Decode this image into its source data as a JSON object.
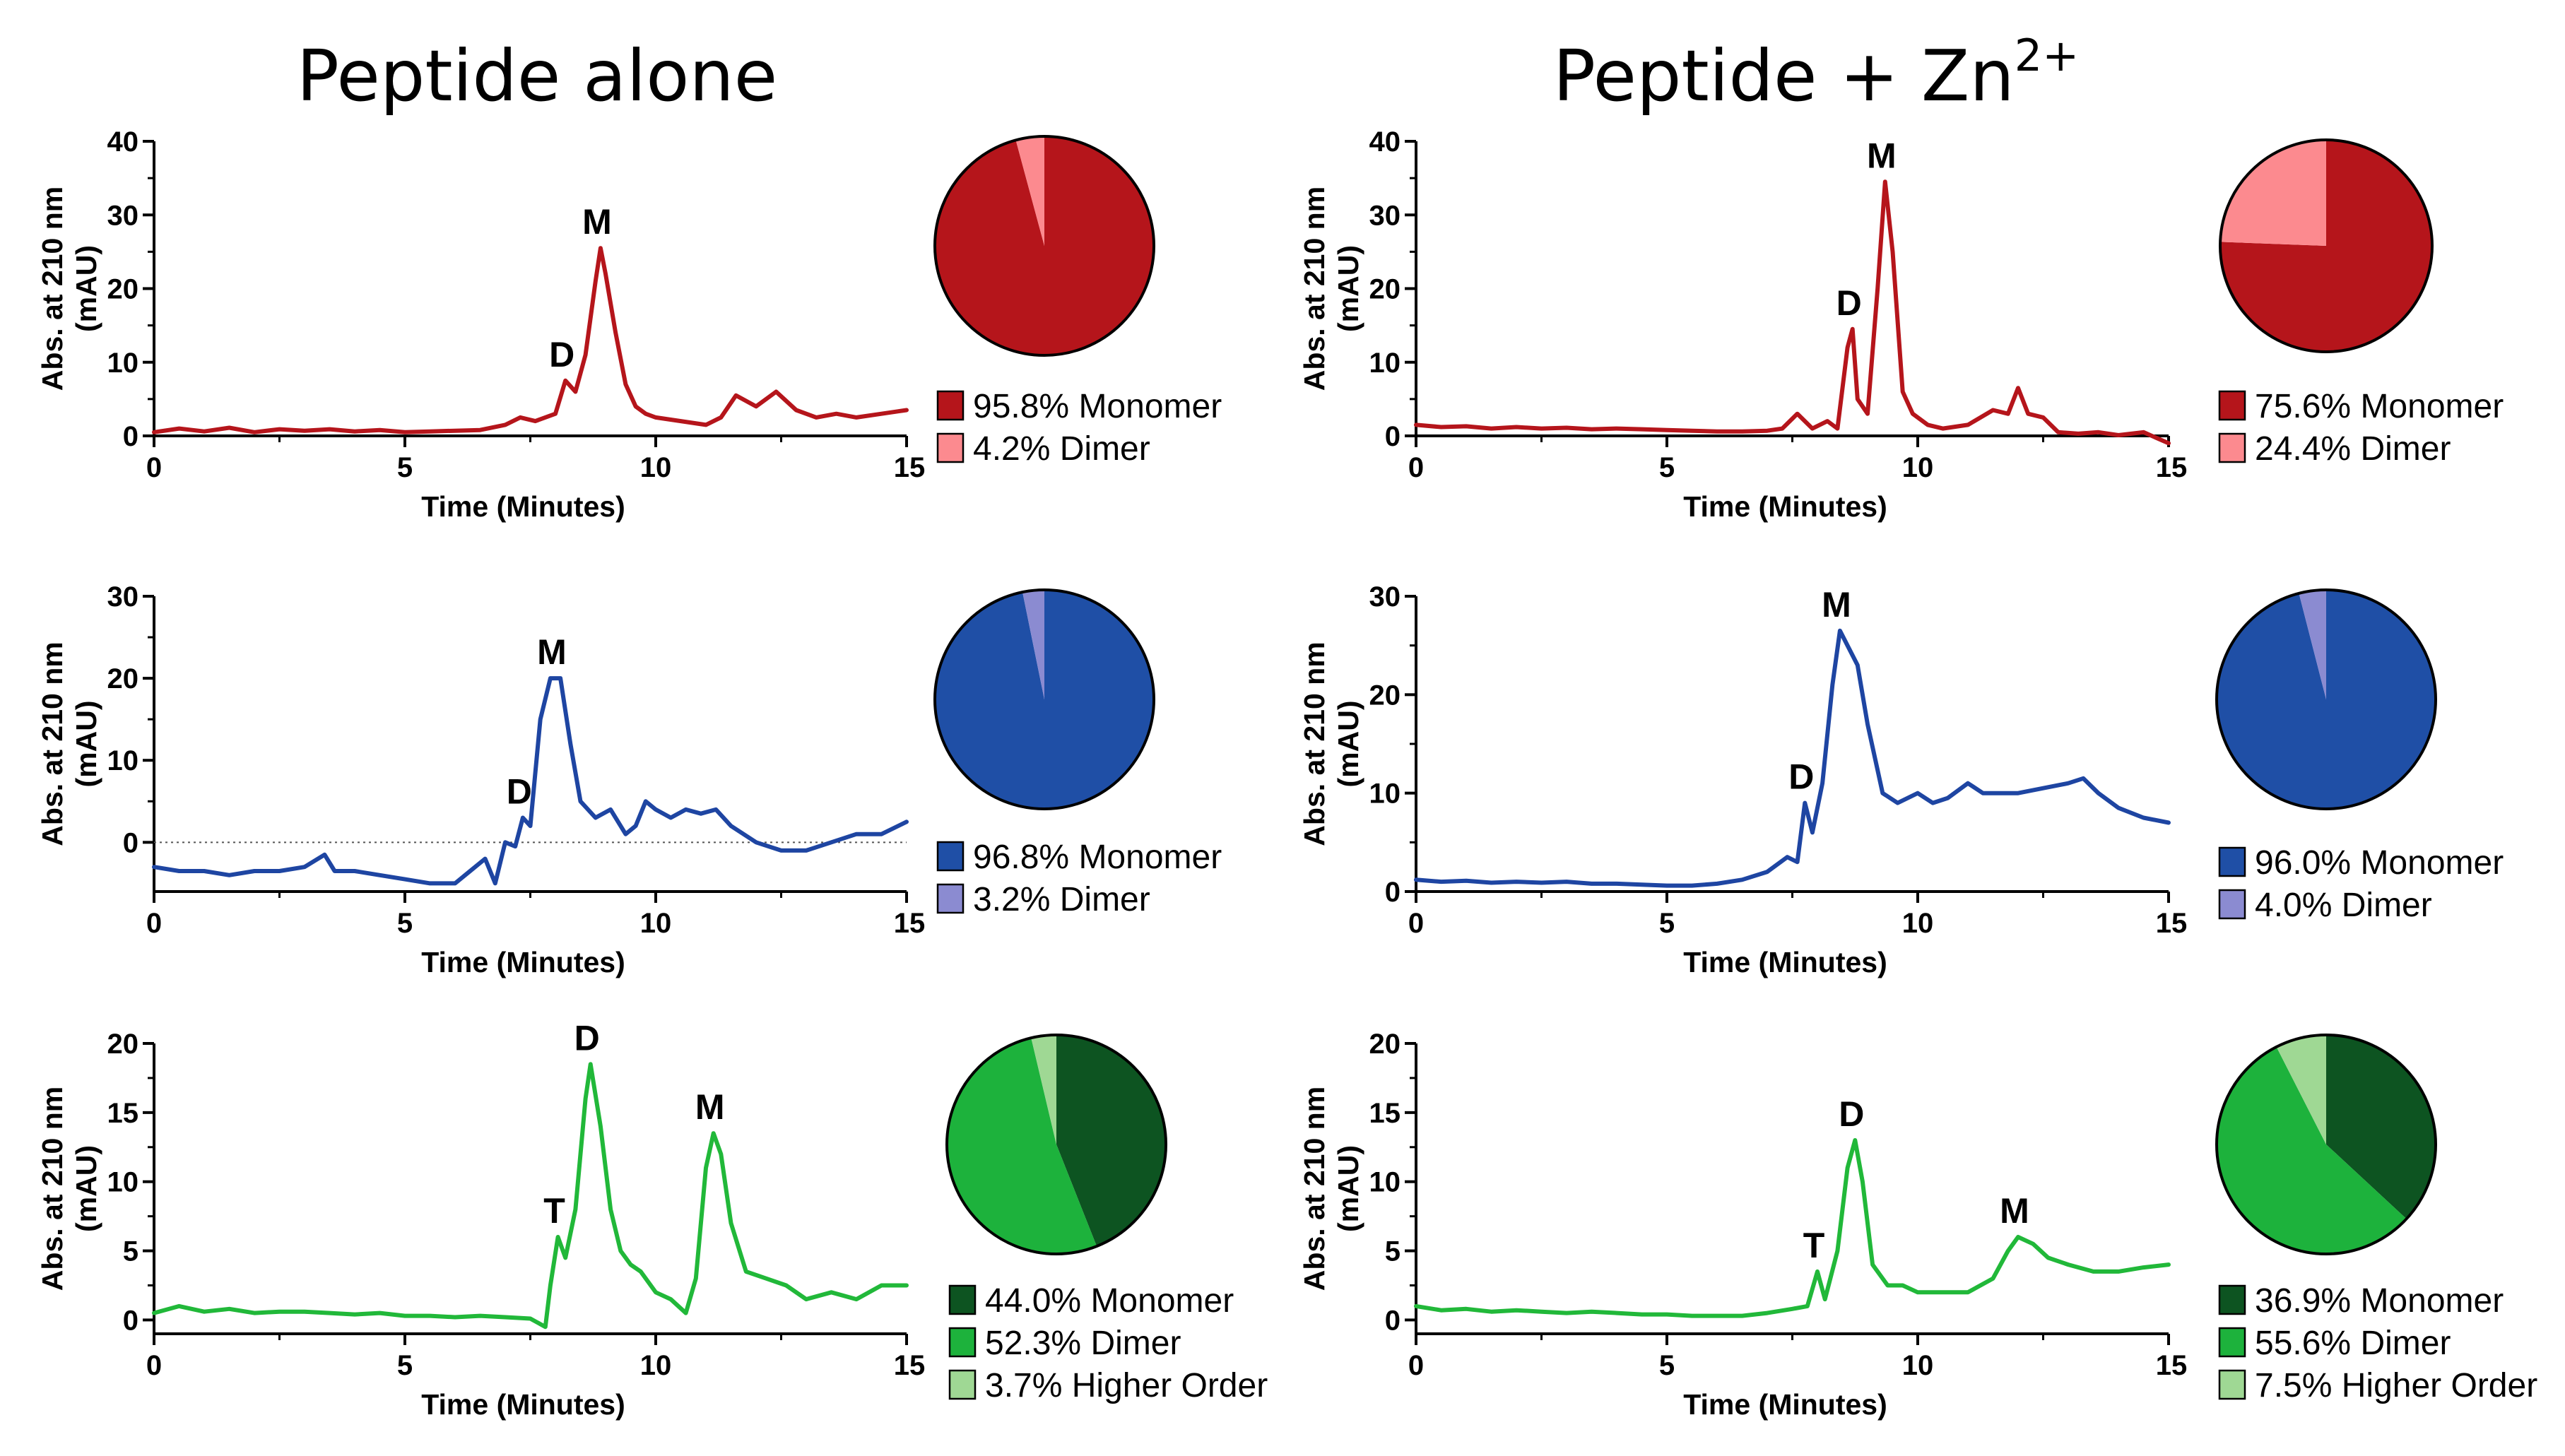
{
  "columns": {
    "left_title": "Peptide alone",
    "right_title_base": "Peptide + Zn",
    "right_title_sup": "2+"
  },
  "chart_data": [
    {
      "id": "alone-red",
      "type": "line",
      "color": "#b5151b",
      "x": [
        0,
        0.5,
        1,
        1.5,
        2,
        2.5,
        3,
        3.5,
        4,
        4.5,
        5,
        5.5,
        6,
        6.5,
        7,
        7.3,
        7.6,
        8,
        8.2,
        8.4,
        8.6,
        8.8,
        8.9,
        9.0,
        9.2,
        9.4,
        9.6,
        9.8,
        10,
        10.5,
        11,
        11.3,
        11.6,
        12,
        12.4,
        12.8,
        13.2,
        13.6,
        14,
        14.5,
        15
      ],
      "y": [
        0.5,
        1,
        0.6,
        1.1,
        0.5,
        0.9,
        0.7,
        0.9,
        0.6,
        0.8,
        0.5,
        0.6,
        0.7,
        0.8,
        1.5,
        2.5,
        2,
        3,
        7.5,
        6,
        11,
        21,
        25.5,
        22,
        14,
        7,
        4,
        3,
        2.5,
        2,
        1.5,
        2.5,
        5.5,
        4,
        6,
        3.5,
        2.5,
        3,
        2.5,
        3,
        3.5
      ],
      "xlabel": "Time (Minutes)",
      "ylabel": "Abs. at 210 nm (mAU)",
      "xticks": [
        "0",
        "5",
        "10",
        "15"
      ],
      "yticks": [
        "0",
        "10",
        "20",
        "30",
        "40"
      ],
      "xlim": [
        0,
        15
      ],
      "ylim": [
        0,
        40
      ],
      "zero_line": false,
      "peaks": [
        {
          "label": "M",
          "x": 8.9,
          "y": 25.5
        },
        {
          "label": "D",
          "x": 8.2,
          "y": 7.5
        }
      ],
      "pie": [
        {
          "name": "Monomer",
          "percent": 95.8,
          "color": "#b5151b",
          "label": "95.8% Monomer"
        },
        {
          "name": "Dimer",
          "percent": 4.2,
          "color": "#fc8a8f",
          "label": "4.2% Dimer"
        }
      ]
    },
    {
      "id": "zn-red",
      "type": "line",
      "color": "#b5151b",
      "x": [
        0,
        0.5,
        1,
        1.5,
        2,
        2.5,
        3,
        3.5,
        4,
        4.5,
        5,
        5.5,
        6,
        6.5,
        7,
        7.3,
        7.6,
        7.9,
        8.2,
        8.4,
        8.6,
        8.7,
        8.8,
        9.0,
        9.2,
        9.35,
        9.5,
        9.7,
        9.9,
        10.2,
        10.5,
        11,
        11.5,
        11.8,
        12.0,
        12.2,
        12.5,
        12.8,
        13.2,
        13.6,
        14,
        14.5,
        15
      ],
      "y": [
        1.5,
        1.2,
        1.3,
        1,
        1.2,
        1,
        1.1,
        0.9,
        1,
        0.9,
        0.8,
        0.7,
        0.6,
        0.6,
        0.7,
        1,
        3,
        1,
        2,
        1,
        12,
        14.5,
        5,
        3,
        20,
        34.5,
        25,
        6,
        3,
        1.5,
        1,
        1.5,
        3.5,
        3,
        6.5,
        3,
        2.5,
        0.5,
        0.3,
        0.5,
        0.1,
        0.5,
        -1
      ],
      "xlabel": "Time (Minutes)",
      "ylabel": "Abs. at 210 nm (mAU)",
      "xticks": [
        "0",
        "5",
        "10",
        "15"
      ],
      "yticks": [
        "0",
        "10",
        "20",
        "30",
        "40"
      ],
      "xlim": [
        0,
        15
      ],
      "ylim": [
        0,
        40
      ],
      "zero_line": false,
      "peaks": [
        {
          "label": "M",
          "x": 9.35,
          "y": 34.5
        },
        {
          "label": "D",
          "x": 8.7,
          "y": 14.5
        }
      ],
      "pie": [
        {
          "name": "Monomer",
          "percent": 75.6,
          "color": "#b5151b",
          "label": "75.6% Monomer"
        },
        {
          "name": "Dimer",
          "percent": 24.4,
          "color": "#fc8a8f",
          "label": "24.4% Dimer"
        }
      ]
    },
    {
      "id": "alone-blue",
      "type": "line",
      "color": "#1e45a2",
      "x": [
        0,
        0.5,
        1,
        1.5,
        2,
        2.5,
        3,
        3.4,
        3.6,
        4,
        4.5,
        5,
        5.5,
        6,
        6.3,
        6.6,
        6.8,
        7.0,
        7.2,
        7.35,
        7.5,
        7.7,
        7.9,
        8.1,
        8.3,
        8.5,
        8.8,
        9.1,
        9.4,
        9.6,
        9.8,
        10.0,
        10.3,
        10.6,
        10.9,
        11.2,
        11.5,
        12,
        12.5,
        13,
        13.5,
        14,
        14.5,
        15
      ],
      "y": [
        -3,
        -3.5,
        -3.5,
        -4,
        -3.5,
        -3.5,
        -3,
        -1.5,
        -3.5,
        -3.5,
        -4,
        -4.5,
        -5,
        -5,
        -3.5,
        -2,
        -5,
        0,
        -0.5,
        3,
        2,
        15,
        20,
        20,
        12,
        5,
        3,
        4,
        1,
        2,
        5,
        4,
        3,
        4,
        3.5,
        4,
        2,
        0,
        -1,
        -1,
        0,
        1,
        1,
        2.5
      ],
      "xlabel": "Time (Minutes)",
      "ylabel": "Abs. at 210 nm (mAU)",
      "xticks": [
        "0",
        "5",
        "10",
        "15"
      ],
      "yticks": [
        "0",
        "10",
        "20",
        "30"
      ],
      "xlim": [
        0,
        15
      ],
      "ylim": [
        -6,
        30
      ],
      "zero_line": true,
      "peaks": [
        {
          "label": "M",
          "x": 8.0,
          "y": 20
        },
        {
          "label": "D",
          "x": 7.35,
          "y": 3
        }
      ],
      "pie": [
        {
          "name": "Monomer",
          "percent": 96.8,
          "color": "#1f4fa6",
          "label": "96.8% Monomer"
        },
        {
          "name": "Dimer",
          "percent": 3.2,
          "color": "#8b8bd1",
          "label": "3.2% Dimer"
        }
      ]
    },
    {
      "id": "zn-blue",
      "type": "line",
      "color": "#1e45a2",
      "x": [
        0,
        0.5,
        1,
        1.5,
        2,
        2.5,
        3,
        3.5,
        4,
        4.5,
        5,
        5.5,
        6,
        6.5,
        7,
        7.4,
        7.6,
        7.75,
        7.9,
        8.1,
        8.3,
        8.45,
        8.6,
        8.8,
        9.0,
        9.3,
        9.6,
        10,
        10.3,
        10.6,
        11,
        11.3,
        11.6,
        12,
        12.5,
        13,
        13.3,
        13.6,
        14,
        14.5,
        15
      ],
      "y": [
        1.2,
        1,
        1.1,
        0.9,
        1,
        0.9,
        1,
        0.8,
        0.8,
        0.7,
        0.6,
        0.6,
        0.8,
        1.2,
        2,
        3.5,
        3,
        9,
        6,
        11,
        21,
        26.5,
        25,
        23,
        17,
        10,
        9,
        10,
        9,
        9.5,
        11,
        10,
        10,
        10,
        10.5,
        11,
        11.5,
        10,
        8.5,
        7.5,
        7
      ],
      "xlabel": "Time (Minutes)",
      "ylabel": "Abs. at 210 nm (mAU)",
      "xticks": [
        "0",
        "5",
        "10",
        "15"
      ],
      "yticks": [
        "0",
        "10",
        "20",
        "30"
      ],
      "xlim": [
        0,
        15
      ],
      "ylim": [
        0,
        30
      ],
      "zero_line": false,
      "peaks": [
        {
          "label": "M",
          "x": 8.45,
          "y": 26.5
        },
        {
          "label": "D",
          "x": 7.75,
          "y": 9
        }
      ],
      "pie": [
        {
          "name": "Monomer",
          "percent": 96.0,
          "color": "#1f4fa6",
          "label": "96.0% Monomer"
        },
        {
          "name": "Dimer",
          "percent": 4.0,
          "color": "#8b8bd1",
          "label": "4.0% Dimer"
        }
      ]
    },
    {
      "id": "alone-green",
      "type": "line",
      "color": "#21b839",
      "x": [
        0,
        0.5,
        1,
        1.5,
        2,
        2.5,
        3,
        3.5,
        4,
        4.5,
        5,
        5.5,
        6,
        6.5,
        7,
        7.5,
        7.8,
        7.9,
        8.05,
        8.2,
        8.4,
        8.6,
        8.7,
        8.9,
        9.1,
        9.3,
        9.5,
        9.7,
        10,
        10.3,
        10.6,
        10.8,
        11.0,
        11.15,
        11.3,
        11.5,
        11.8,
        12.2,
        12.6,
        13,
        13.5,
        14,
        14.5,
        15
      ],
      "y": [
        0.5,
        1,
        0.6,
        0.8,
        0.5,
        0.6,
        0.6,
        0.5,
        0.4,
        0.5,
        0.3,
        0.3,
        0.2,
        0.3,
        0.2,
        0.1,
        -0.5,
        2.5,
        6,
        4.5,
        8,
        16,
        18.5,
        14,
        8,
        5,
        4,
        3.5,
        2,
        1.5,
        0.5,
        3,
        11,
        13.5,
        12,
        7,
        3.5,
        3,
        2.5,
        1.5,
        2,
        1.5,
        2.5,
        2.5
      ],
      "xlabel": "Time (Minutes)",
      "ylabel": "Abs. at 210 nm (mAU)",
      "xticks": [
        "0",
        "5",
        "10",
        "15"
      ],
      "yticks": [
        "0",
        "5",
        "10",
        "15",
        "20"
      ],
      "xlim": [
        0,
        15
      ],
      "ylim": [
        -1,
        20
      ],
      "zero_line": false,
      "peaks": [
        {
          "label": "D",
          "x": 8.7,
          "y": 18.5
        },
        {
          "label": "M",
          "x": 11.15,
          "y": 13.5
        },
        {
          "label": "T",
          "x": 8.05,
          "y": 6
        }
      ],
      "pie": [
        {
          "name": "Monomer",
          "percent": 44.0,
          "color": "#0d5421",
          "label": "44.0% Monomer"
        },
        {
          "name": "Dimer",
          "percent": 52.3,
          "color": "#1db23c",
          "label": "52.3% Dimer"
        },
        {
          "name": "Higher Order",
          "percent": 3.7,
          "color": "#9fd894",
          "label": "3.7% Higher Order"
        }
      ]
    },
    {
      "id": "zn-green",
      "type": "line",
      "color": "#21b839",
      "x": [
        0,
        0.5,
        1,
        1.5,
        2,
        2.5,
        3,
        3.5,
        4,
        4.5,
        5,
        5.5,
        6,
        6.5,
        7,
        7.5,
        7.8,
        8.0,
        8.15,
        8.4,
        8.6,
        8.75,
        8.9,
        9.1,
        9.4,
        9.7,
        10,
        10.5,
        11,
        11.5,
        11.8,
        12.0,
        12.3,
        12.6,
        13,
        13.5,
        14,
        14.5,
        15
      ],
      "y": [
        1,
        0.7,
        0.8,
        0.6,
        0.7,
        0.6,
        0.5,
        0.6,
        0.5,
        0.4,
        0.4,
        0.3,
        0.3,
        0.3,
        0.5,
        0.8,
        1,
        3.5,
        1.5,
        5,
        11,
        13,
        10,
        4,
        2.5,
        2.5,
        2,
        2,
        2,
        3,
        5,
        6,
        5.5,
        4.5,
        4,
        3.5,
        3.5,
        3.8,
        4
      ],
      "xlabel": "Time (Minutes)",
      "ylabel": "Abs. at 210 nm (mAU)",
      "xticks": [
        "0",
        "5",
        "10",
        "15"
      ],
      "yticks": [
        "0",
        "5",
        "10",
        "15",
        "20"
      ],
      "xlim": [
        0,
        15
      ],
      "ylim": [
        -1,
        20
      ],
      "zero_line": false,
      "peaks": [
        {
          "label": "D",
          "x": 8.75,
          "y": 13
        },
        {
          "label": "M",
          "x": 12.0,
          "y": 6
        },
        {
          "label": "T",
          "x": 8.0,
          "y": 3.5
        }
      ],
      "pie": [
        {
          "name": "Monomer",
          "percent": 36.9,
          "color": "#0d5421",
          "label": "36.9% Monomer"
        },
        {
          "name": "Dimer",
          "percent": 55.6,
          "color": "#1db23c",
          "label": "55.6% Dimer"
        },
        {
          "name": "Higher Order",
          "percent": 7.5,
          "color": "#9fd894",
          "label": "7.5% Higher Order"
        }
      ]
    }
  ]
}
